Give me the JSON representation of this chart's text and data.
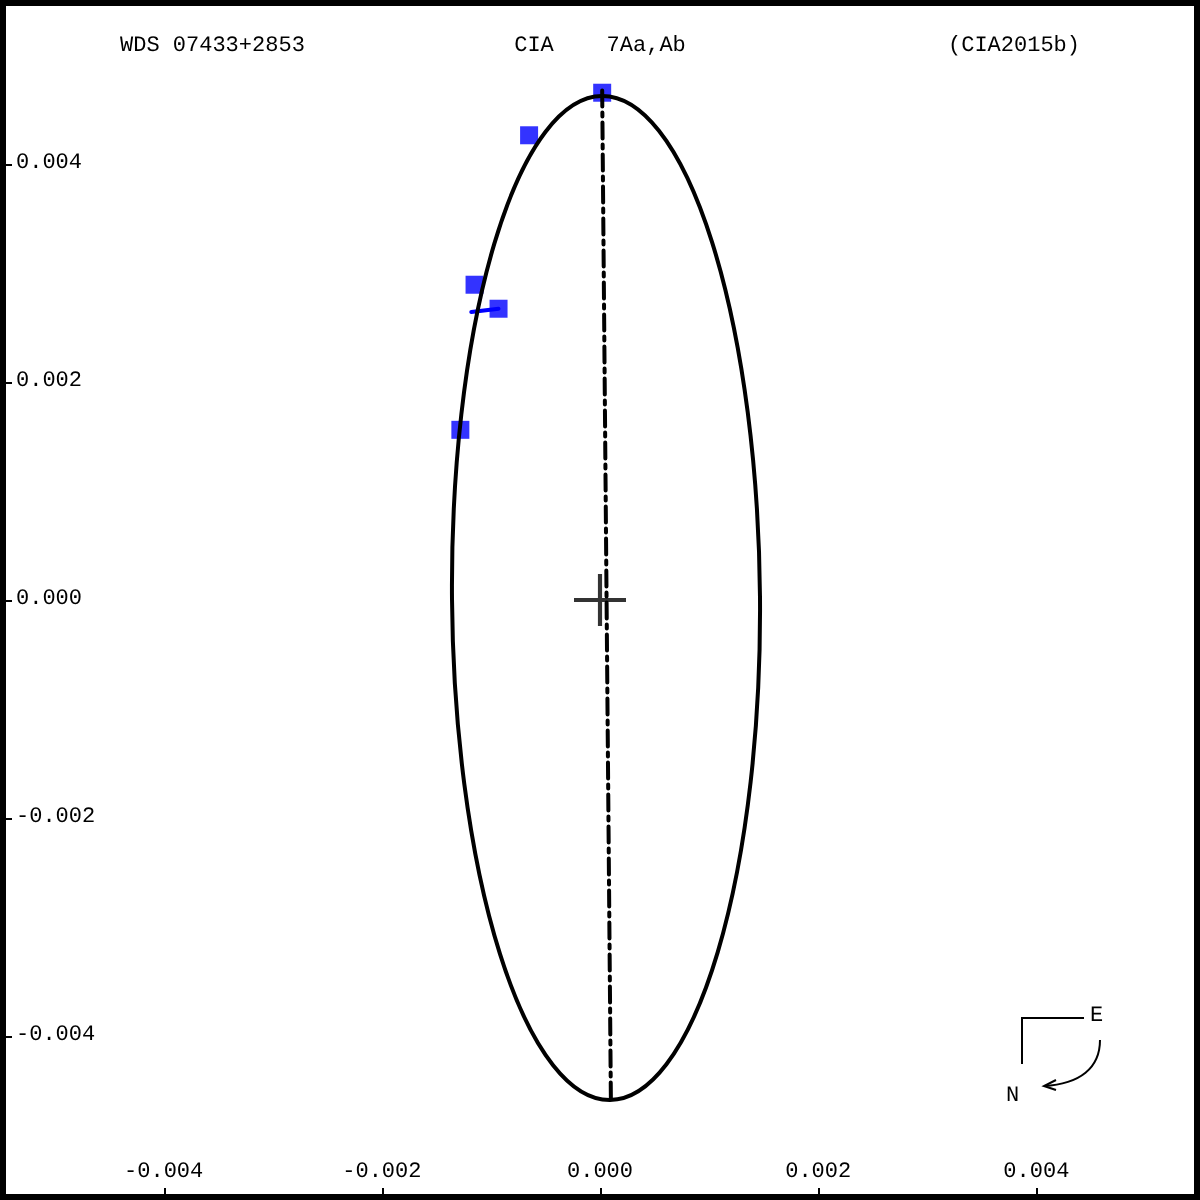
{
  "chart_data": {
    "type": "scatter",
    "title": "CIA    7Aa,Ab",
    "annotations": [
      "WDS 07433+2853",
      "(CIA2015b)",
      "E",
      "N"
    ],
    "xlim": [
      -0.0055,
      0.0055
    ],
    "ylim": [
      -0.0055,
      0.0055
    ],
    "xticks": [
      {
        "value": -0.004,
        "label": "-0.004"
      },
      {
        "value": -0.002,
        "label": "-0.002"
      },
      {
        "value": 0,
        "label": "0.000"
      },
      {
        "value": 0.002,
        "label": "0.002"
      },
      {
        "value": 0.004,
        "label": "0.004"
      }
    ],
    "yticks": [
      {
        "value": -0.004,
        "label": "-0.004"
      },
      {
        "value": -0.002,
        "label": "-0.002"
      },
      {
        "value": 0,
        "label": "0.000"
      },
      {
        "value": 0.002,
        "label": "0.002"
      },
      {
        "value": 0.004,
        "label": "0.004"
      }
    ],
    "grid": false,
    "series": [
      {
        "type": "line",
        "color": "#000000",
        "marker": "none",
        "line_style": "dashed",
        "x": [
          2e-05,
          0.0001
        ],
        "values": [
          0.00467,
          -0.00461
        ]
      },
      {
        "type": "line",
        "color": "#0000ff",
        "marker": "none",
        "line_style": "solid",
        "x": [
          -0.00093,
          -0.00118
        ],
        "values": [
          0.00267,
          0.00264
        ]
      },
      {
        "color": "#0000ff",
        "marker": "square",
        "x": [
          2e-05,
          -0.00065,
          -0.00115,
          -0.00093,
          -0.00128
        ],
        "values": [
          0.00465,
          0.00426,
          0.00289,
          0.00267,
          0.00156
        ]
      },
      {
        "color": "#000000",
        "marker": "cross",
        "x": [
          0
        ],
        "values": [
          0
        ]
      }
    ]
  }
}
